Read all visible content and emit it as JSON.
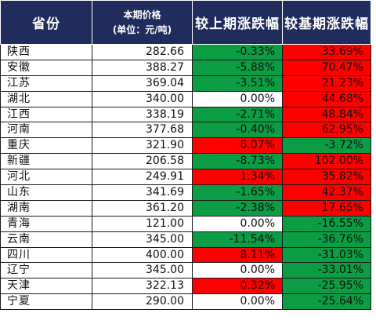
{
  "table": {
    "headers": {
      "province": "省份",
      "price_line1": "本期价格",
      "price_line2": "(单位：元/吨)",
      "mom_change": "较上期涨跌幅",
      "yoy_change": "较基期涨跌幅"
    },
    "colors": {
      "header_bg": "#1f2c5c",
      "increase": "#fe0000",
      "decrease": "#0c9c44",
      "unchanged": "#ffffff"
    },
    "rows": [
      {
        "province": "陕西",
        "price": "282.66",
        "mom": "-0.33%",
        "yoy": "33.69%",
        "mom_dir": "down",
        "yoy_dir": "up"
      },
      {
        "province": "安徽",
        "price": "388.27",
        "mom": "-5.88%",
        "yoy": "70.47%",
        "mom_dir": "down",
        "yoy_dir": "up"
      },
      {
        "province": "江苏",
        "price": "369.04",
        "mom": "-3.51%",
        "yoy": "21.23%",
        "mom_dir": "down",
        "yoy_dir": "up"
      },
      {
        "province": "湖北",
        "price": "340.00",
        "mom": "0.00%",
        "yoy": "44.68%",
        "mom_dir": "flat",
        "yoy_dir": "up"
      },
      {
        "province": "江西",
        "price": "338.19",
        "mom": "-2.71%",
        "yoy": "48.84%",
        "mom_dir": "down",
        "yoy_dir": "up"
      },
      {
        "province": "河南",
        "price": "377.68",
        "mom": "-0.40%",
        "yoy": "62.95%",
        "mom_dir": "down",
        "yoy_dir": "up"
      },
      {
        "province": "重庆",
        "price": "321.90",
        "mom": "6.07%",
        "yoy": "-3.72%",
        "mom_dir": "up",
        "yoy_dir": "down"
      },
      {
        "province": "新疆",
        "price": "206.58",
        "mom": "-8.73%",
        "yoy": "102.00%",
        "mom_dir": "down",
        "yoy_dir": "up"
      },
      {
        "province": "河北",
        "price": "249.91",
        "mom": "1.34%",
        "yoy": "35.82%",
        "mom_dir": "up",
        "yoy_dir": "up"
      },
      {
        "province": "山东",
        "price": "341.69",
        "mom": "-1.65%",
        "yoy": "42.37%",
        "mom_dir": "down",
        "yoy_dir": "up"
      },
      {
        "province": "湖南",
        "price": "361.20",
        "mom": "-2.38%",
        "yoy": "17.65%",
        "mom_dir": "down",
        "yoy_dir": "up"
      },
      {
        "province": "青海",
        "price": "121.00",
        "mom": "0.00%",
        "yoy": "-16.55%",
        "mom_dir": "flat",
        "yoy_dir": "down"
      },
      {
        "province": "云南",
        "price": "345.00",
        "mom": "-11.54%",
        "yoy": "-36.76%",
        "mom_dir": "down",
        "yoy_dir": "down"
      },
      {
        "province": "四川",
        "price": "400.00",
        "mom": "8.11%",
        "yoy": "-31.03%",
        "mom_dir": "up",
        "yoy_dir": "down"
      },
      {
        "province": "辽宁",
        "price": "345.00",
        "mom": "0.00%",
        "yoy": "-33.01%",
        "mom_dir": "flat",
        "yoy_dir": "down"
      },
      {
        "province": "天津",
        "price": "322.13",
        "mom": "0.32%",
        "yoy": "-25.95%",
        "mom_dir": "up",
        "yoy_dir": "down"
      },
      {
        "province": "宁夏",
        "price": "290.00",
        "mom": "0.00%",
        "yoy": "-25.64%",
        "mom_dir": "flat",
        "yoy_dir": "down"
      }
    ]
  }
}
